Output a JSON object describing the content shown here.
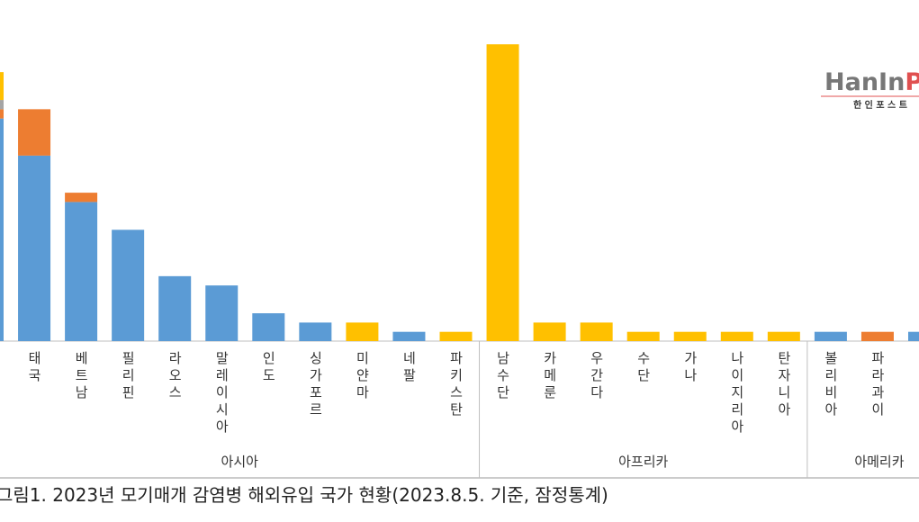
{
  "chart_data": {
    "type": "stacked-bar",
    "caption": "그림1. 2023년 모기매개 감염병 해외유입 국가 현황(2023.8.5. 기준, 잠정통계)",
    "watermark": {
      "text": "HanIn",
      "text_accent": "Po",
      "subtext": "한 인 포 스 트"
    },
    "categories": [
      null,
      "태국",
      "베트남",
      "필리핀",
      "라오스",
      "말레이시아",
      "인도",
      "싱가포르",
      "미얀마",
      "네팔",
      "파키스탄",
      "남수단",
      "카메룬",
      "우간다",
      "수단",
      "가나",
      "나이지리아",
      "탄자니아",
      "볼리비아",
      "파라과이",
      null
    ],
    "groups": [
      {
        "name": "아시아",
        "count": 11
      },
      {
        "name": "아프리카",
        "count": 7
      },
      {
        "name": "아메리카",
        "count": 3
      }
    ],
    "series": [
      {
        "color": "#5b9bd5",
        "values": [
          24,
          20,
          15,
          12,
          7,
          6,
          3,
          2,
          0,
          1,
          0,
          0,
          0,
          0,
          0,
          0,
          0,
          0,
          1,
          0,
          1
        ]
      },
      {
        "color": "#ed7d31",
        "values": [
          1,
          5,
          1,
          0,
          0,
          0,
          0,
          0,
          0,
          0,
          0,
          0,
          0,
          0,
          0,
          0,
          0,
          0,
          0,
          1,
          0
        ]
      },
      {
        "color": "#a5a5a5",
        "values": [
          1,
          0,
          0,
          0,
          0,
          0,
          0,
          0,
          0,
          0,
          0,
          0,
          0,
          0,
          0,
          0,
          0,
          0,
          0,
          0,
          0
        ]
      },
      {
        "color": "#ffc000",
        "values": [
          3,
          0,
          0,
          0,
          0,
          0,
          0,
          0,
          2,
          0,
          1,
          32,
          2,
          2,
          1,
          1,
          1,
          1,
          0,
          0,
          0
        ]
      }
    ],
    "ylim": [
      0,
      36
    ]
  }
}
